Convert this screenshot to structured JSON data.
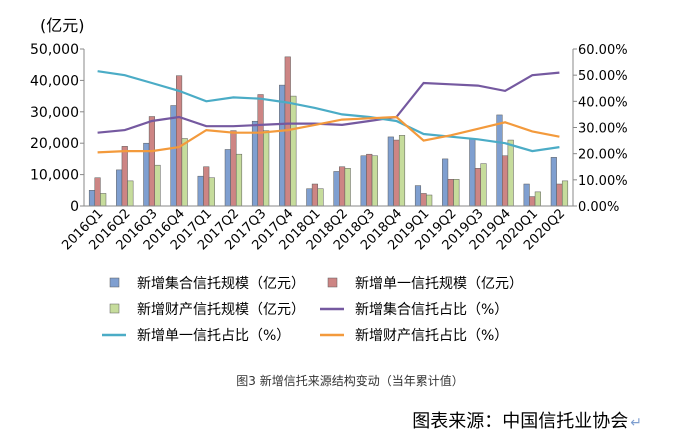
{
  "chart_data": {
    "type": "bar",
    "ylabel_left": "(亿元)",
    "categories": [
      "2016Q1",
      "2016Q2",
      "2016Q3",
      "2016Q4",
      "2017Q1",
      "2017Q2",
      "2017Q3",
      "2017Q4",
      "2018Q1",
      "2018Q2",
      "2018Q3",
      "2018Q4",
      "2019Q1",
      "2019Q2",
      "2019Q3",
      "2019Q4",
      "2020Q1",
      "2020Q2"
    ],
    "ylim_left": [
      0,
      50000
    ],
    "yticks_left": [
      "0",
      "10,000",
      "20,000",
      "30,000",
      "40,000",
      "50,000"
    ],
    "ylim_right": [
      0,
      60
    ],
    "yticks_right": [
      "0.00%",
      "10.00%",
      "20.00%",
      "30.00%",
      "40.00%",
      "50.00%",
      "60.00%"
    ],
    "bar_series": [
      {
        "name": "新增集合信托规模（亿元）",
        "color": "#7f9fd0",
        "values": [
          5000,
          11500,
          20000,
          32000,
          9500,
          18000,
          27000,
          38500,
          5500,
          11000,
          16000,
          22000,
          6500,
          15000,
          21500,
          29000,
          7000,
          15500
        ]
      },
      {
        "name": "新增单一信托规模（亿元）",
        "color": "#cd8584",
        "values": [
          9000,
          19000,
          28500,
          41500,
          12500,
          24000,
          35500,
          47500,
          7000,
          12500,
          16500,
          21000,
          4000,
          8500,
          12000,
          16000,
          3000,
          7000
        ]
      },
      {
        "name": "新增财产信托规模（亿元）",
        "color": "#c6dc9c",
        "values": [
          4000,
          8000,
          13000,
          21500,
          9000,
          16500,
          24000,
          35000,
          5500,
          12000,
          16000,
          22500,
          3500,
          8500,
          13500,
          21000,
          4500,
          8000
        ]
      }
    ],
    "line_series": [
      {
        "name": "新增集合信托占比（%）",
        "color": "#7559a0",
        "values": [
          28,
          29,
          32.5,
          34,
          30.5,
          30.5,
          31,
          31.5,
          31.5,
          31,
          32.5,
          34,
          47,
          46.5,
          46,
          44,
          50,
          51
        ]
      },
      {
        "name": "新增单一信托占比（%）",
        "color": "#4bacc6",
        "values": [
          51.5,
          50,
          47,
          44,
          40,
          41.5,
          41,
          39.5,
          37.5,
          35,
          34,
          32.5,
          27.5,
          26.5,
          25.5,
          24,
          21,
          22.5
        ]
      },
      {
        "name": "新增财产信托占比（%）",
        "color": "#f39a3c",
        "values": [
          20.5,
          21,
          21,
          22.5,
          29,
          28,
          28,
          29,
          31,
          33,
          33.5,
          34,
          25,
          27,
          29.5,
          32,
          28.5,
          26.5
        ]
      }
    ],
    "legend_position": "bottom"
  },
  "caption": "图3  新增信托来源结构变动（当年累计值）",
  "source_text": "图表来源：中国信托业协会",
  "source_mark": "↵"
}
